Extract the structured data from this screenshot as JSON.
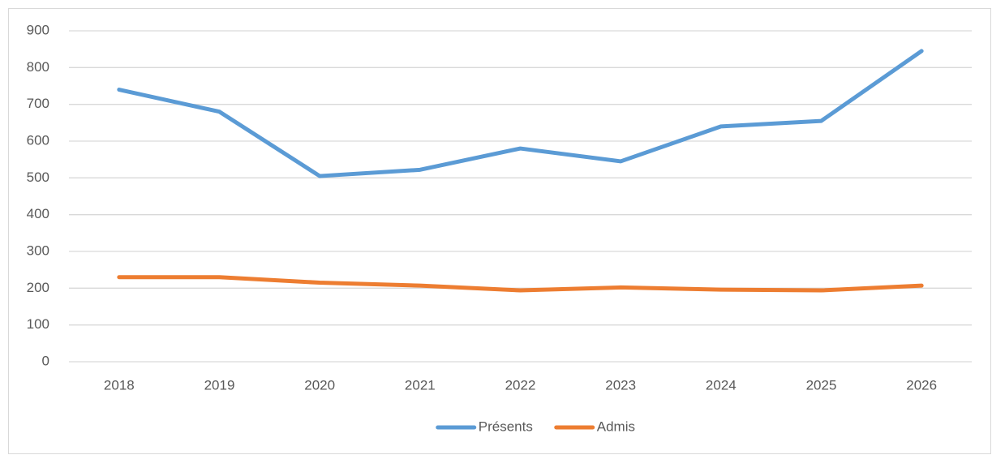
{
  "chart_data": {
    "type": "line",
    "categories": [
      "2018",
      "2019",
      "2020",
      "2021",
      "2022",
      "2023",
      "2024",
      "2025",
      "2026"
    ],
    "series": [
      {
        "name": "Présents",
        "color": "#5b9bd5",
        "values": [
          740,
          680,
          505,
          522,
          580,
          545,
          640,
          655,
          845
        ]
      },
      {
        "name": "Admis",
        "color": "#ed7d31",
        "values": [
          230,
          230,
          215,
          207,
          194,
          202,
          196,
          194,
          207
        ]
      }
    ],
    "ylim": [
      0,
      900
    ],
    "yticks": [
      0,
      100,
      200,
      300,
      400,
      500,
      600,
      700,
      800,
      900
    ],
    "grid": true,
    "legend": "bottom"
  }
}
